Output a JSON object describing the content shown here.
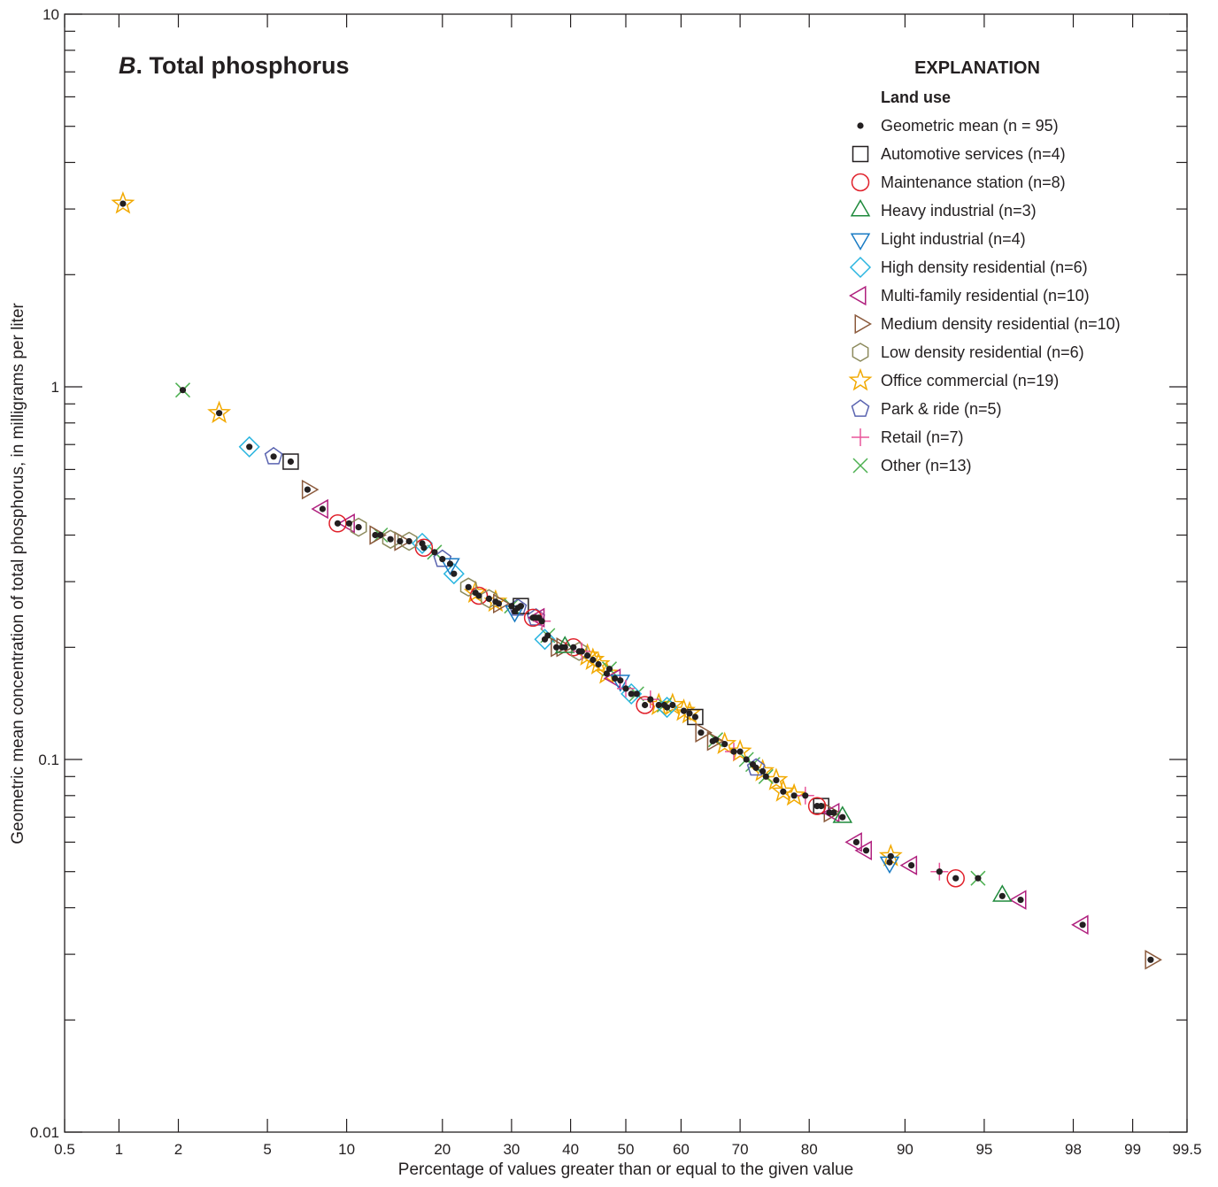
{
  "chart_data": {
    "type": "scatter",
    "title_letter": "B",
    "title_text": ". Total phosphorus",
    "xlabel": "Percentage of values greater than or equal to the given value",
    "ylabel": "Geometric mean concentration of total phosphorus, in milligrams per liter",
    "x_scale": "probability",
    "y_scale": "log",
    "xlim": [
      0.5,
      99.5
    ],
    "ylim": [
      0.01,
      10
    ],
    "x_ticks": [
      0.5,
      1,
      2,
      5,
      10,
      20,
      30,
      40,
      50,
      60,
      70,
      80,
      90,
      95,
      98,
      99,
      99.5
    ],
    "x_tick_labels": [
      "0.5",
      "1",
      "2",
      "5",
      "10",
      "20",
      "30",
      "40",
      "50",
      "60",
      "70",
      "80",
      "90",
      "95",
      "98",
      "99",
      "99.5"
    ],
    "y_ticks": [
      0.01,
      0.1,
      1,
      10
    ],
    "y_tick_labels": [
      "0.01",
      "0.1",
      "1",
      "10"
    ],
    "grid": false,
    "legend": {
      "heading": "EXPLANATION",
      "subheading": "Land use",
      "placement": "top-right",
      "entries": [
        {
          "label": "Geometric mean (n = 95)",
          "symbol": "dot",
          "color": "#231f20"
        },
        {
          "label": "Automotive services (n=4)",
          "symbol": "square",
          "color": "#231f20"
        },
        {
          "label": "Maintenance station (n=8)",
          "symbol": "circle",
          "color": "#e0202a"
        },
        {
          "label": "Heavy industrial (n=3)",
          "symbol": "triangle-up",
          "color": "#1f8a3c"
        },
        {
          "label": "Light industrial (n=4)",
          "symbol": "triangle-down",
          "color": "#1a7bc4"
        },
        {
          "label": "High density residential (n=6)",
          "symbol": "diamond",
          "color": "#2ab5e0"
        },
        {
          "label": "Multi-family residential (n=10)",
          "symbol": "triangle-left",
          "color": "#b0207e"
        },
        {
          "label": "Medium density residential (n=10)",
          "symbol": "triangle-right",
          "color": "#8b5a3c"
        },
        {
          "label": "Low density residential (n=6)",
          "symbol": "hexagon",
          "color": "#8c8a5c"
        },
        {
          "label": "Office commercial (n=19)",
          "symbol": "star",
          "color": "#f2a900"
        },
        {
          "label": "Park & ride (n=5)",
          "symbol": "pentagon",
          "color": "#5a64b0"
        },
        {
          "label": "Retail (n=7)",
          "symbol": "plus",
          "color": "#e8559a"
        },
        {
          "label": "Other (n=13)",
          "symbol": "x",
          "color": "#4cb050"
        }
      ]
    },
    "series": [
      {
        "land_use": "Office commercial (n=19)",
        "points": [
          [
            1.05,
            3.1
          ],
          [
            3.1,
            0.85
          ],
          [
            24.5,
            0.28
          ],
          [
            27.5,
            0.265
          ],
          [
            43,
            0.19
          ],
          [
            45,
            0.18
          ],
          [
            46.5,
            0.17
          ],
          [
            56,
            0.14
          ],
          [
            58.5,
            0.14
          ],
          [
            60.5,
            0.135
          ],
          [
            67.5,
            0.11
          ],
          [
            70,
            0.105
          ],
          [
            73.5,
            0.093
          ],
          [
            75.5,
            0.088
          ],
          [
            76.5,
            0.082
          ],
          [
            78,
            0.08
          ],
          [
            88.8,
            0.055
          ],
          [
            61.5,
            0.133
          ],
          [
            44,
            0.185
          ]
        ]
      },
      {
        "land_use": "Other (n=13)",
        "points": [
          [
            2.1,
            0.98
          ],
          [
            94.7,
            0.048
          ],
          [
            19,
            0.36
          ],
          [
            36,
            0.215
          ],
          [
            47,
            0.175
          ],
          [
            52,
            0.15
          ],
          [
            66,
            0.113
          ],
          [
            71,
            0.1
          ],
          [
            74,
            0.09
          ],
          [
            72,
            0.097
          ],
          [
            13,
            0.4
          ],
          [
            30,
            0.258
          ],
          [
            57,
            0.14
          ]
        ]
      },
      {
        "land_use": "High density residential (n=6)",
        "points": [
          [
            4.2,
            0.69
          ],
          [
            21.5,
            0.315
          ],
          [
            35.5,
            0.21
          ],
          [
            51,
            0.15
          ],
          [
            57.5,
            0.138
          ],
          [
            17.5,
            0.38
          ]
        ]
      },
      {
        "land_use": "Park & ride (n=5)",
        "points": [
          [
            5.3,
            0.65
          ],
          [
            20,
            0.345
          ],
          [
            31,
            0.255
          ],
          [
            34,
            0.24
          ],
          [
            72.5,
            0.095
          ]
        ]
      },
      {
        "land_use": "Automotive services (n=4)",
        "points": [
          [
            6.2,
            0.63
          ],
          [
            31.5,
            0.258
          ],
          [
            62.5,
            0.13
          ],
          [
            81.5,
            0.075
          ]
        ]
      },
      {
        "land_use": "Medium density residential (n=10)",
        "points": [
          [
            7.2,
            0.53
          ],
          [
            12.5,
            0.4
          ],
          [
            15,
            0.385
          ],
          [
            28,
            0.262
          ],
          [
            37.5,
            0.2
          ],
          [
            63.5,
            0.118
          ],
          [
            65.5,
            0.112
          ],
          [
            82.5,
            0.072
          ],
          [
            38.5,
            0.2
          ],
          [
            99.2,
            0.029
          ]
        ]
      },
      {
        "land_use": "Multi-family residential (n=10)",
        "points": [
          [
            8.2,
            0.47
          ],
          [
            10.2,
            0.43
          ],
          [
            34.5,
            0.24
          ],
          [
            48,
            0.165
          ],
          [
            85.5,
            0.06
          ],
          [
            86.5,
            0.057
          ],
          [
            90.5,
            0.052
          ],
          [
            96.5,
            0.042
          ],
          [
            98.2,
            0.036
          ],
          [
            83,
            0.072
          ]
        ]
      },
      {
        "land_use": "Maintenance station (n=8)",
        "points": [
          [
            9.3,
            0.43
          ],
          [
            17.7,
            0.37
          ],
          [
            25,
            0.275
          ],
          [
            33.5,
            0.24
          ],
          [
            40.5,
            0.2
          ],
          [
            53.5,
            0.14
          ],
          [
            81,
            0.075
          ],
          [
            93.5,
            0.048
          ]
        ]
      },
      {
        "land_use": "Low density residential (n=6)",
        "points": [
          [
            11,
            0.42
          ],
          [
            14,
            0.39
          ],
          [
            16,
            0.385
          ],
          [
            23.5,
            0.29
          ],
          [
            41.5,
            0.195
          ],
          [
            26.5,
            0.27
          ]
        ]
      },
      {
        "land_use": "Light industrial (n=4)",
        "points": [
          [
            21,
            0.335
          ],
          [
            30.5,
            0.25
          ],
          [
            49,
            0.163
          ],
          [
            88.7,
            0.053
          ]
        ]
      },
      {
        "land_use": "Heavy industrial (n=3)",
        "points": [
          [
            84,
            0.07
          ],
          [
            95.8,
            0.043
          ],
          [
            39,
            0.2
          ]
        ]
      },
      {
        "land_use": "Retail (n=7)",
        "points": [
          [
            42,
            0.195
          ],
          [
            50,
            0.155
          ],
          [
            54.5,
            0.145
          ],
          [
            69,
            0.105
          ],
          [
            79.5,
            0.08
          ],
          [
            92.5,
            0.05
          ],
          [
            35,
            0.235
          ]
        ]
      }
    ]
  }
}
